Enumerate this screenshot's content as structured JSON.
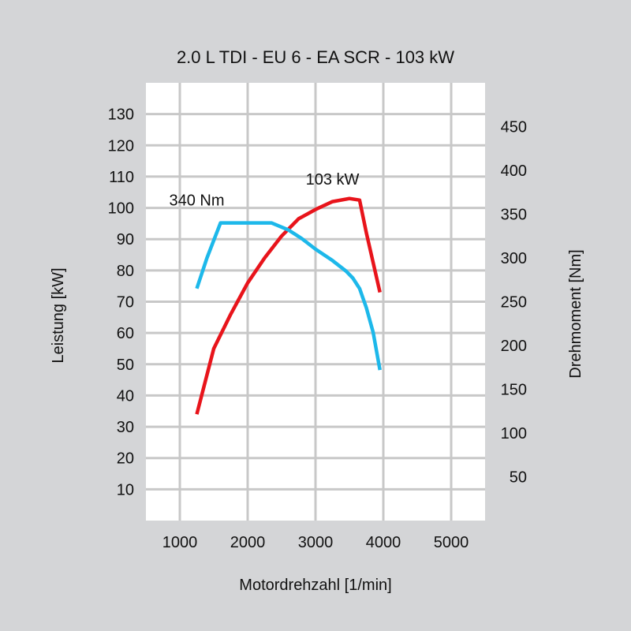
{
  "chart_data": {
    "type": "line",
    "title": "2.0 L TDI - EU 6 - EA SCR - 103 kW",
    "xlabel": "Motordrehzahl [1/min]",
    "ylabel_left": "Leistung [kW]",
    "ylabel_right": "Drehmoment [Nm]",
    "xlim": [
      500,
      5500
    ],
    "x_ticks": [
      1000,
      2000,
      3000,
      4000,
      5000
    ],
    "ylim_left": [
      0,
      140
    ],
    "y_ticks_left": [
      10,
      20,
      30,
      40,
      50,
      60,
      70,
      80,
      90,
      100,
      110,
      120,
      130
    ],
    "ylim_right": [
      0,
      500
    ],
    "y_ticks_right": [
      50,
      100,
      150,
      200,
      250,
      300,
      350,
      400,
      450
    ],
    "grid": true,
    "series": [
      {
        "name": "103 kW",
        "axis": "left",
        "color": "#e8141b",
        "x": [
          1250,
          1500,
          1750,
          2000,
          2250,
          2500,
          2750,
          3000,
          3250,
          3500,
          3650,
          3750,
          3950
        ],
        "y": [
          34,
          55,
          66,
          76,
          84,
          91,
          96.5,
          99.5,
          102,
          103,
          102.5,
          92,
          73
        ]
      },
      {
        "name": "340 Nm",
        "axis": "right",
        "color": "#1db8ea",
        "x": [
          1250,
          1400,
          1600,
          1750,
          2000,
          2350,
          2600,
          2800,
          3000,
          3250,
          3450,
          3550,
          3650,
          3750,
          3850,
          3950
        ],
        "y": [
          265,
          300,
          340,
          340,
          340,
          340,
          332,
          322,
          310,
          297,
          285,
          277,
          265,
          243,
          215,
          172
        ]
      }
    ],
    "annotations": [
      {
        "text": "103 kW",
        "x": 3250,
        "y": 107.5,
        "axis": "left"
      },
      {
        "text": "340 Nm",
        "x": 1250,
        "y": 360,
        "axis": "right"
      }
    ]
  }
}
